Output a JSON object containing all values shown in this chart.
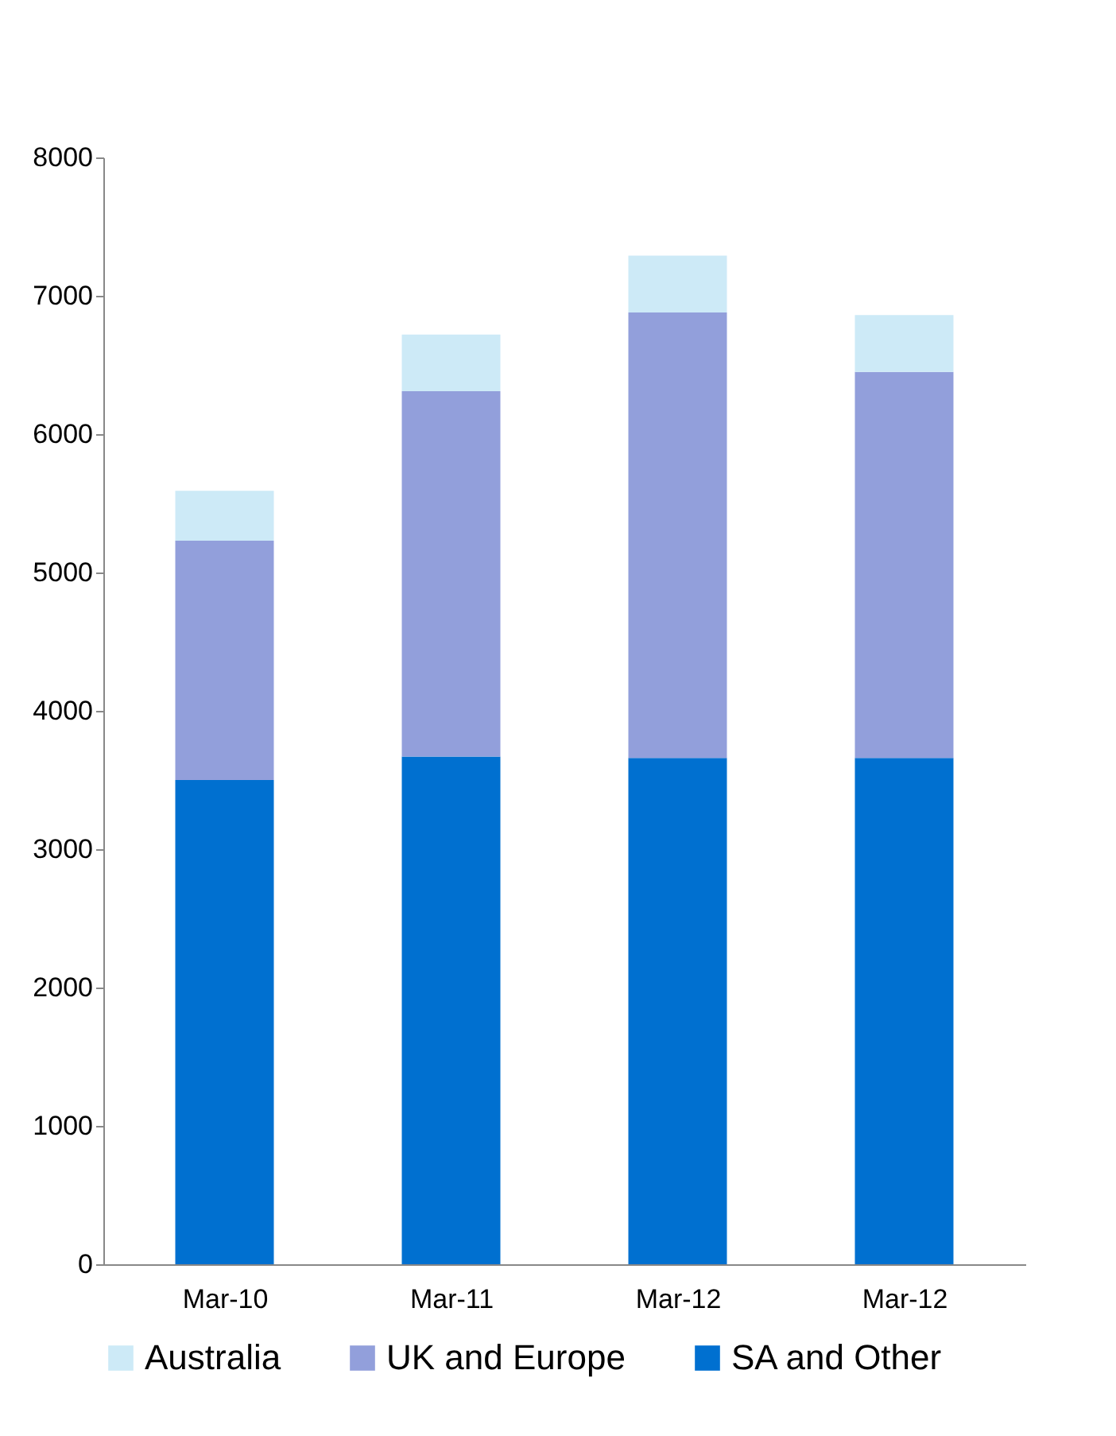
{
  "chart_data": {
    "type": "bar",
    "stacked": true,
    "categories": [
      "Mar-10",
      "Mar-11",
      "Mar-12",
      "Mar-12"
    ],
    "series": [
      {
        "name": "SA and Other",
        "color": "#0070d0",
        "values": [
          3500,
          3670,
          3660,
          3660
        ]
      },
      {
        "name": "UK and Europe",
        "color": "#929fdb",
        "values": [
          1730,
          2640,
          3220,
          2790
        ]
      },
      {
        "name": "Australia",
        "color": "#cdeaf7",
        "values": [
          360,
          410,
          410,
          410
        ]
      }
    ],
    "ylim": [
      0,
      8000
    ],
    "yticks": [
      0,
      1000,
      2000,
      3000,
      4000,
      5000,
      6000,
      7000,
      8000
    ],
    "grid": false,
    "legend": "bottom"
  }
}
